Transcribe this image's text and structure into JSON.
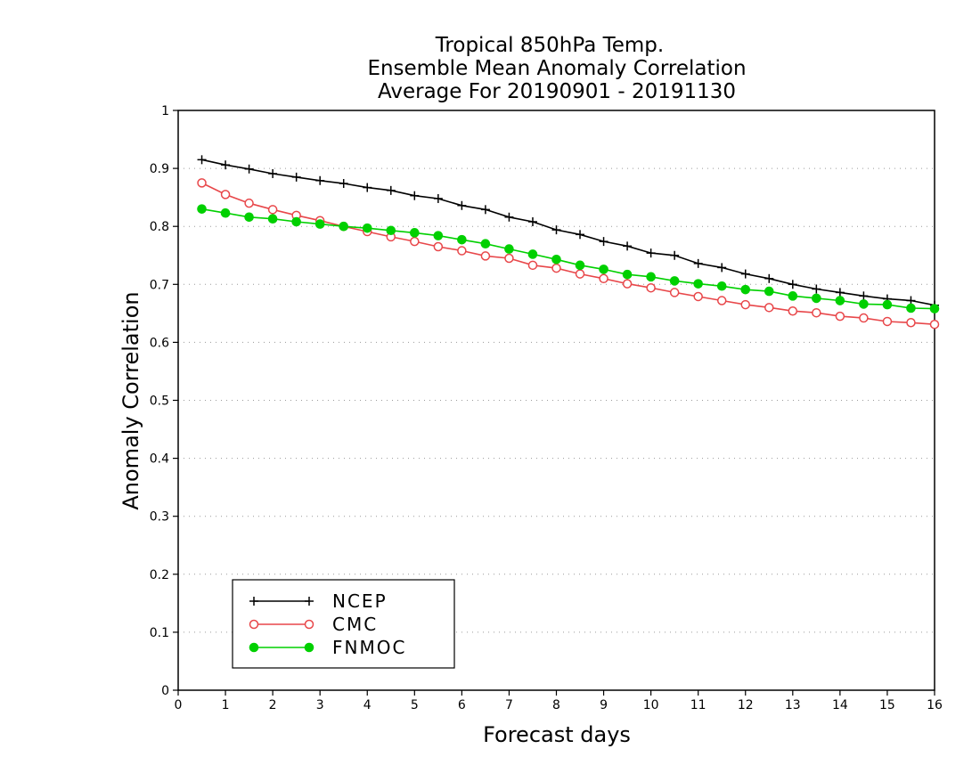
{
  "chart_data": {
    "type": "line",
    "title": [
      "Tropical 850hPa Temp.",
      "Ensemble Mean Anomaly Correlation",
      "Average For 20190901 - 20191130"
    ],
    "xlabel": "Forecast days",
    "ylabel": "Anomaly Correlation",
    "xlim": [
      0,
      16
    ],
    "ylim": [
      0,
      1
    ],
    "xticks": [
      "0",
      "1",
      "2",
      "3",
      "4",
      "5",
      "6",
      "7",
      "8",
      "9",
      "10",
      "11",
      "12",
      "13",
      "14",
      "15",
      "16"
    ],
    "yticks": [
      "0",
      "0.1",
      "0.2",
      "0.3",
      "0.4",
      "0.5",
      "0.6",
      "0.7",
      "0.8",
      "0.9",
      "1"
    ],
    "grid": "horizontal dotted",
    "legend_position": "bottom-left",
    "x": [
      0.5,
      1,
      1.5,
      2,
      2.5,
      3,
      3.5,
      4,
      4.5,
      5,
      5.5,
      6,
      6.5,
      7,
      7.5,
      8,
      8.5,
      9,
      9.5,
      10,
      10.5,
      11,
      11.5,
      12,
      12.5,
      13,
      13.5,
      14,
      14.5,
      15,
      15.5,
      16
    ],
    "series": [
      {
        "name": "NCEP",
        "color": "#000000",
        "marker": "plus",
        "values": [
          0.915,
          0.906,
          0.899,
          0.891,
          0.885,
          0.879,
          0.874,
          0.867,
          0.862,
          0.853,
          0.848,
          0.836,
          0.829,
          0.816,
          0.808,
          0.794,
          0.786,
          0.774,
          0.766,
          0.754,
          0.75,
          0.736,
          0.729,
          0.718,
          0.71,
          0.7,
          0.692,
          0.686,
          0.68,
          0.675,
          0.672,
          0.664
        ]
      },
      {
        "name": "CMC",
        "color": "#e8474a",
        "marker": "open-circle",
        "values": [
          0.875,
          0.855,
          0.84,
          0.829,
          0.819,
          0.81,
          0.8,
          0.791,
          0.782,
          0.774,
          0.765,
          0.758,
          0.749,
          0.745,
          0.733,
          0.728,
          0.718,
          0.71,
          0.701,
          0.694,
          0.686,
          0.679,
          0.672,
          0.665,
          0.66,
          0.654,
          0.651,
          0.645,
          0.642,
          0.636,
          0.634,
          0.631
        ]
      },
      {
        "name": "FNMOC",
        "color": "#00d000",
        "marker": "filled-circle",
        "values": [
          0.83,
          0.823,
          0.816,
          0.813,
          0.808,
          0.804,
          0.8,
          0.797,
          0.793,
          0.789,
          0.784,
          0.777,
          0.77,
          0.761,
          0.752,
          0.743,
          0.733,
          0.726,
          0.717,
          0.713,
          0.706,
          0.701,
          0.697,
          0.691,
          0.688,
          0.68,
          0.676,
          0.672,
          0.666,
          0.665,
          0.659,
          0.658
        ]
      }
    ]
  }
}
